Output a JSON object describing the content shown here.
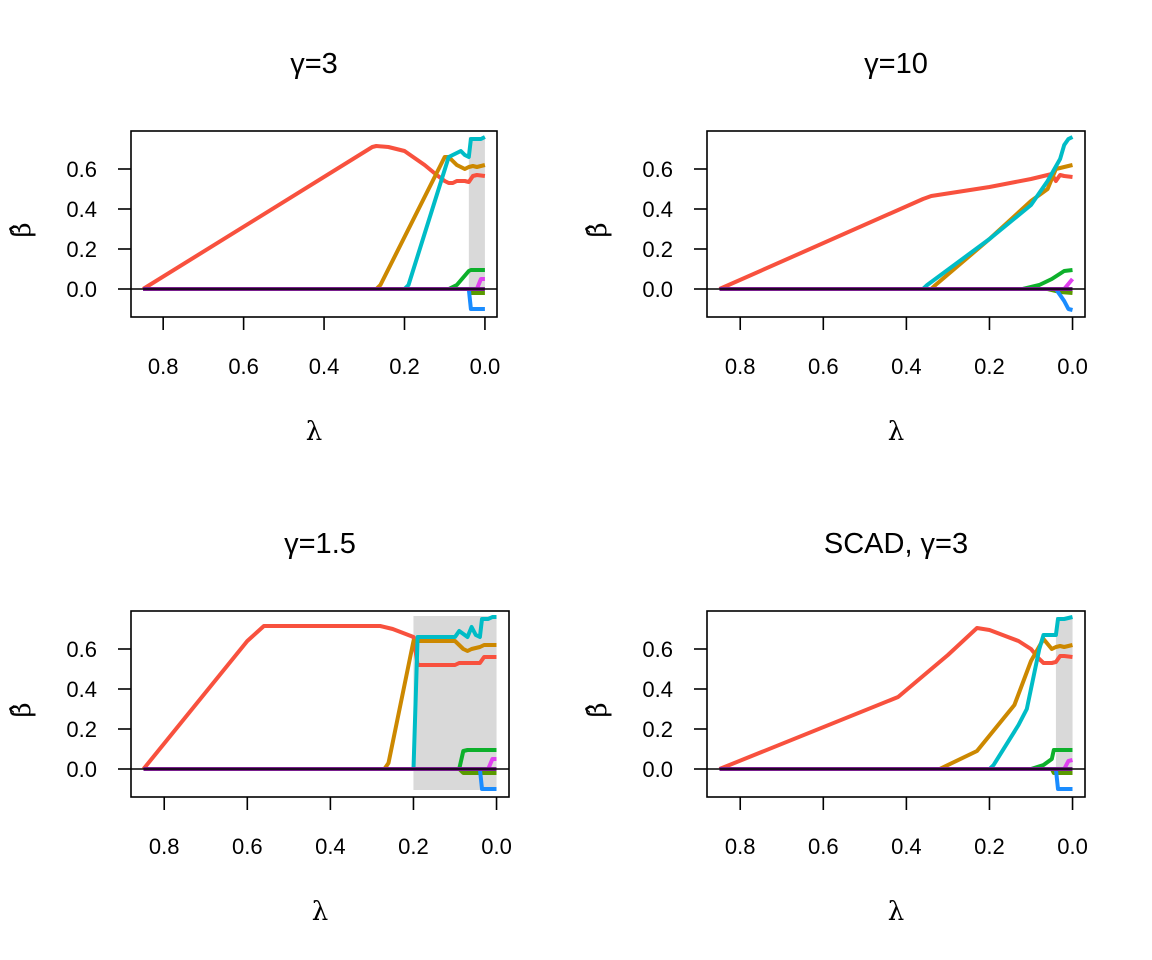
{
  "chart_data": [
    {
      "type": "line",
      "title": "γ=3",
      "xlabel": "λ",
      "ylabel": "β̂",
      "xlim": [
        0.88,
        -0.03
      ],
      "ylim": [
        -0.14,
        0.79
      ],
      "x_reversed": true,
      "xticks": [
        0.8,
        0.6,
        0.4,
        0.2,
        0.0
      ],
      "xtick_labels": [
        "0.8",
        "0.6",
        "0.4",
        "0.2",
        "0.0"
      ],
      "yticks": [
        0.0,
        0.2,
        0.4,
        0.6
      ],
      "ytick_labels": [
        "0.0",
        "0.2",
        "0.4",
        "0.6"
      ],
      "grid": false,
      "zero_line": true,
      "shaded_region": [
        0.04,
        0.0
      ],
      "series": [
        {
          "color": "#F8513E",
          "x": [
            0.85,
            0.28,
            0.27,
            0.24,
            0.2,
            0.15,
            0.12,
            0.1,
            0.09,
            0.08,
            0.07,
            0.05,
            0.04,
            0.03,
            0.02,
            0.0
          ],
          "y": [
            0.0,
            0.71,
            0.715,
            0.71,
            0.69,
            0.62,
            0.57,
            0.54,
            0.53,
            0.53,
            0.54,
            0.54,
            0.535,
            0.565,
            0.57,
            0.565
          ]
        },
        {
          "color": "#CC8800",
          "x": [
            0.85,
            0.27,
            0.26,
            0.1,
            0.09,
            0.07,
            0.05,
            0.04,
            0.03,
            0.02,
            0.0
          ],
          "y": [
            0.0,
            0.0,
            0.02,
            0.66,
            0.66,
            0.62,
            0.6,
            0.61,
            0.615,
            0.61,
            0.62
          ]
        },
        {
          "color": "#00BCC6",
          "x": [
            0.85,
            0.2,
            0.19,
            0.09,
            0.06,
            0.05,
            0.04,
            0.035,
            0.03,
            0.01,
            0.0
          ],
          "y": [
            0.0,
            0.0,
            0.02,
            0.66,
            0.69,
            0.67,
            0.66,
            0.75,
            0.75,
            0.75,
            0.76
          ]
        },
        {
          "color": "#0DB02B",
          "x": [
            0.85,
            0.09,
            0.07,
            0.04,
            0.035,
            0.03,
            0.0
          ],
          "y": [
            0.0,
            0.0,
            0.02,
            0.09,
            0.095,
            0.095,
            0.095
          ]
        },
        {
          "color": "#5A9A00",
          "x": [
            0.85,
            0.04,
            0.035,
            0.03,
            0.0
          ],
          "y": [
            0.0,
            0.0,
            -0.02,
            -0.02,
            -0.02
          ]
        },
        {
          "color": "#1A8CFF",
          "x": [
            0.85,
            0.04,
            0.035,
            0.03,
            0.0
          ],
          "y": [
            0.0,
            0.0,
            -0.1,
            -0.1,
            -0.1
          ]
        },
        {
          "color": "#E040F0",
          "x": [
            0.85,
            0.02,
            0.01,
            0.0
          ],
          "y": [
            0.0,
            0.0,
            0.05,
            0.05
          ]
        },
        {
          "color": "#7A1F8E",
          "x": [
            0.85,
            0.0
          ],
          "y": [
            0.0,
            0.0
          ]
        }
      ]
    },
    {
      "type": "line",
      "title": "γ=10",
      "xlabel": "λ",
      "ylabel": "β̂",
      "xlim": [
        0.88,
        -0.03
      ],
      "ylim": [
        -0.14,
        0.79
      ],
      "x_reversed": true,
      "xticks": [
        0.8,
        0.6,
        0.4,
        0.2,
        0.0
      ],
      "xtick_labels": [
        "0.8",
        "0.6",
        "0.4",
        "0.2",
        "0.0"
      ],
      "yticks": [
        0.0,
        0.2,
        0.4,
        0.6
      ],
      "ytick_labels": [
        "0.0",
        "0.2",
        "0.4",
        "0.6"
      ],
      "grid": false,
      "zero_line": true,
      "shaded_region": null,
      "series": [
        {
          "color": "#F8513E",
          "x": [
            0.85,
            0.36,
            0.34,
            0.2,
            0.1,
            0.05,
            0.04,
            0.03,
            0.02,
            0.0
          ],
          "y": [
            0.0,
            0.45,
            0.465,
            0.51,
            0.55,
            0.575,
            0.54,
            0.57,
            0.565,
            0.56
          ]
        },
        {
          "color": "#CC8800",
          "x": [
            0.85,
            0.34,
            0.33,
            0.2,
            0.1,
            0.06,
            0.04,
            0.02,
            0.0
          ],
          "y": [
            0.0,
            0.0,
            0.02,
            0.25,
            0.44,
            0.5,
            0.6,
            0.61,
            0.62
          ]
        },
        {
          "color": "#00BCC6",
          "x": [
            0.85,
            0.36,
            0.35,
            0.2,
            0.1,
            0.06,
            0.03,
            0.02,
            0.01,
            0.0
          ],
          "y": [
            0.0,
            0.0,
            0.02,
            0.25,
            0.42,
            0.54,
            0.65,
            0.72,
            0.75,
            0.76
          ]
        },
        {
          "color": "#0DB02B",
          "x": [
            0.85,
            0.12,
            0.08,
            0.05,
            0.02,
            0.0
          ],
          "y": [
            0.0,
            0.0,
            0.02,
            0.05,
            0.09,
            0.095
          ]
        },
        {
          "color": "#5A9A00",
          "x": [
            0.85,
            0.06,
            0.03,
            0.0
          ],
          "y": [
            0.0,
            0.0,
            -0.015,
            -0.02
          ]
        },
        {
          "color": "#1A8CFF",
          "x": [
            0.85,
            0.04,
            0.02,
            0.01,
            0.0
          ],
          "y": [
            0.0,
            0.0,
            -0.06,
            -0.1,
            -0.105
          ]
        },
        {
          "color": "#E040F0",
          "x": [
            0.85,
            0.02,
            0.0
          ],
          "y": [
            0.0,
            0.0,
            0.05
          ]
        },
        {
          "color": "#7A1F8E",
          "x": [
            0.85,
            0.0
          ],
          "y": [
            0.0,
            0.0
          ]
        }
      ]
    },
    {
      "type": "line",
      "title": "γ=1.5",
      "xlabel": "λ",
      "ylabel": "β̂",
      "xlim": [
        0.88,
        -0.03
      ],
      "ylim": [
        -0.14,
        0.79
      ],
      "x_reversed": true,
      "xticks": [
        0.8,
        0.6,
        0.4,
        0.2,
        0.0
      ],
      "xtick_labels": [
        "0.8",
        "0.6",
        "0.4",
        "0.2",
        "0.0"
      ],
      "yticks": [
        0.0,
        0.2,
        0.4,
        0.6
      ],
      "ytick_labels": [
        "0.0",
        "0.2",
        "0.4",
        "0.6"
      ],
      "grid": false,
      "zero_line": true,
      "shaded_region": [
        0.2,
        0.0
      ],
      "series": [
        {
          "color": "#F8513E",
          "x": [
            0.85,
            0.6,
            0.56,
            0.28,
            0.25,
            0.2,
            0.19,
            0.18,
            0.1,
            0.09,
            0.07,
            0.05,
            0.04,
            0.03,
            0.02,
            0.0
          ],
          "y": [
            0.0,
            0.64,
            0.715,
            0.715,
            0.7,
            0.66,
            0.52,
            0.52,
            0.52,
            0.53,
            0.53,
            0.53,
            0.53,
            0.56,
            0.56,
            0.56
          ]
        },
        {
          "color": "#CC8800",
          "x": [
            0.85,
            0.27,
            0.26,
            0.2,
            0.19,
            0.1,
            0.08,
            0.07,
            0.06,
            0.04,
            0.03,
            0.0
          ],
          "y": [
            0.0,
            0.0,
            0.03,
            0.64,
            0.64,
            0.64,
            0.6,
            0.59,
            0.6,
            0.61,
            0.62,
            0.62
          ]
        },
        {
          "color": "#00BCC6",
          "x": [
            0.85,
            0.2,
            0.19,
            0.1,
            0.09,
            0.07,
            0.06,
            0.05,
            0.04,
            0.035,
            0.02,
            0.01,
            0.0
          ],
          "y": [
            0.0,
            0.0,
            0.66,
            0.66,
            0.69,
            0.66,
            0.71,
            0.67,
            0.66,
            0.75,
            0.75,
            0.76,
            0.76
          ]
        },
        {
          "color": "#0DB02B",
          "x": [
            0.85,
            0.09,
            0.08,
            0.07,
            0.04,
            0.0
          ],
          "y": [
            0.0,
            0.0,
            0.09,
            0.095,
            0.095,
            0.095
          ]
        },
        {
          "color": "#5A9A00",
          "x": [
            0.85,
            0.09,
            0.08,
            0.0
          ],
          "y": [
            0.0,
            0.0,
            -0.02,
            -0.02
          ]
        },
        {
          "color": "#1A8CFF",
          "x": [
            0.85,
            0.04,
            0.035,
            0.03,
            0.0
          ],
          "y": [
            0.0,
            0.0,
            -0.1,
            -0.1,
            -0.1
          ]
        },
        {
          "color": "#E040F0",
          "x": [
            0.85,
            0.02,
            0.01,
            0.0
          ],
          "y": [
            0.0,
            0.0,
            0.05,
            0.05
          ]
        },
        {
          "color": "#7A1F8E",
          "x": [
            0.85,
            0.0
          ],
          "y": [
            0.0,
            0.0
          ]
        }
      ]
    },
    {
      "type": "line",
      "title": "SCAD, γ=3",
      "xlabel": "λ",
      "ylabel": "β̂",
      "xlim": [
        0.88,
        -0.03
      ],
      "ylim": [
        -0.14,
        0.79
      ],
      "x_reversed": true,
      "xticks": [
        0.8,
        0.6,
        0.4,
        0.2,
        0.0
      ],
      "xtick_labels": [
        "0.8",
        "0.6",
        "0.4",
        "0.2",
        "0.0"
      ],
      "yticks": [
        0.0,
        0.2,
        0.4,
        0.6
      ],
      "ytick_labels": [
        "0.0",
        "0.2",
        "0.4",
        "0.6"
      ],
      "grid": false,
      "zero_line": true,
      "shaded_region": [
        0.04,
        0.0
      ],
      "series": [
        {
          "color": "#F8513E",
          "x": [
            0.85,
            0.42,
            0.3,
            0.23,
            0.2,
            0.13,
            0.1,
            0.08,
            0.07,
            0.05,
            0.04,
            0.03,
            0.02,
            0.0
          ],
          "y": [
            0.0,
            0.36,
            0.57,
            0.705,
            0.695,
            0.64,
            0.6,
            0.55,
            0.53,
            0.53,
            0.535,
            0.565,
            0.565,
            0.56
          ]
        },
        {
          "color": "#CC8800",
          "x": [
            0.85,
            0.32,
            0.23,
            0.14,
            0.1,
            0.07,
            0.05,
            0.04,
            0.03,
            0.02,
            0.0
          ],
          "y": [
            0.0,
            0.0,
            0.09,
            0.32,
            0.54,
            0.65,
            0.6,
            0.61,
            0.615,
            0.61,
            0.62
          ]
        },
        {
          "color": "#00BCC6",
          "x": [
            0.85,
            0.2,
            0.19,
            0.13,
            0.11,
            0.08,
            0.07,
            0.04,
            0.035,
            0.02,
            0.0
          ],
          "y": [
            0.0,
            0.0,
            0.02,
            0.22,
            0.3,
            0.6,
            0.67,
            0.67,
            0.75,
            0.75,
            0.76
          ]
        },
        {
          "color": "#0DB02B",
          "x": [
            0.85,
            0.1,
            0.07,
            0.05,
            0.045,
            0.03,
            0.0
          ],
          "y": [
            0.0,
            0.0,
            0.02,
            0.05,
            0.095,
            0.095,
            0.095
          ]
        },
        {
          "color": "#5A9A00",
          "x": [
            0.85,
            0.05,
            0.045,
            0.03,
            0.0
          ],
          "y": [
            0.0,
            0.0,
            -0.02,
            -0.02,
            -0.02
          ]
        },
        {
          "color": "#1A8CFF",
          "x": [
            0.85,
            0.04,
            0.035,
            0.03,
            0.0
          ],
          "y": [
            0.0,
            0.0,
            -0.1,
            -0.1,
            -0.1
          ]
        },
        {
          "color": "#E040F0",
          "x": [
            0.85,
            0.02,
            0.01,
            0.0
          ],
          "y": [
            0.0,
            0.0,
            0.04,
            0.045
          ]
        },
        {
          "color": "#7A1F8E",
          "x": [
            0.85,
            0.0
          ],
          "y": [
            0.0,
            0.0
          ]
        }
      ]
    }
  ]
}
